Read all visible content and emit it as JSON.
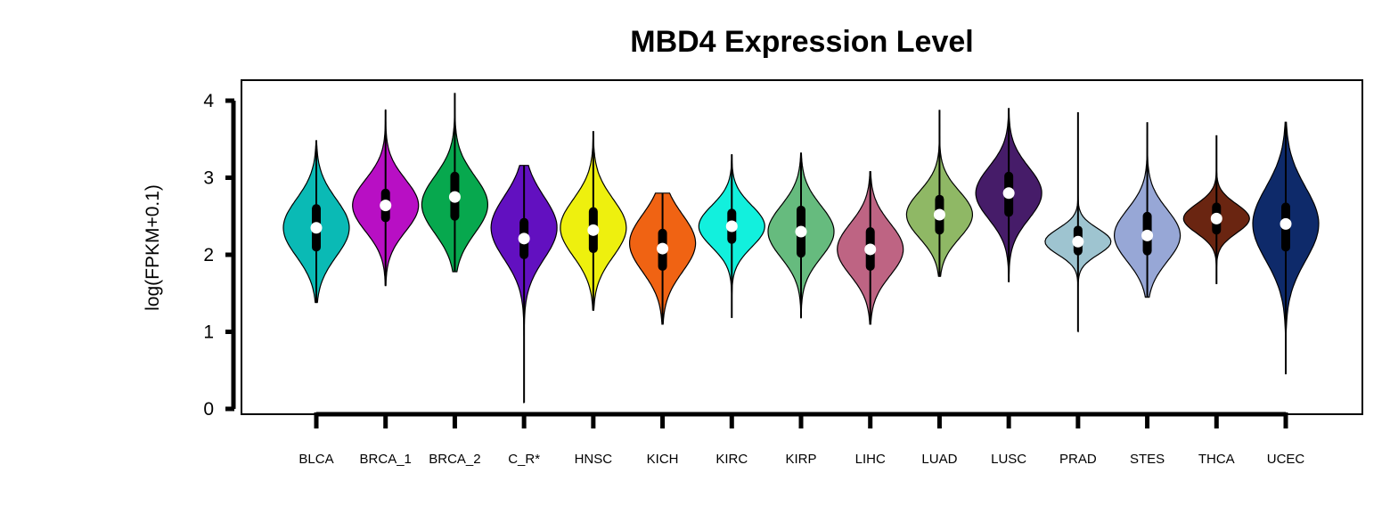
{
  "chart_data": {
    "type": "violin",
    "title": "MBD4 Expression Level",
    "ylabel": "log(FPKM+0.1)",
    "xlabel": "",
    "ylim": [
      0,
      4
    ],
    "yticks": [
      0,
      1,
      2,
      3,
      4
    ],
    "grid": false,
    "legend": "none",
    "groups": [
      {
        "name": "BLCA",
        "color": "#0ABAB5",
        "min": 1.38,
        "q1": 2.1,
        "median": 2.35,
        "q3": 2.6,
        "max": 3.48,
        "mode": 2.35,
        "spread": 0.55
      },
      {
        "name": "BRCA_1",
        "color": "#B80FC4",
        "min": 1.6,
        "q1": 2.48,
        "median": 2.64,
        "q3": 2.8,
        "max": 3.88,
        "mode": 2.64,
        "spread": 0.5
      },
      {
        "name": "BRCA_2",
        "color": "#07A84E",
        "min": 1.78,
        "q1": 2.5,
        "median": 2.75,
        "q3": 3.02,
        "max": 4.1,
        "mode": 2.65,
        "spread": 0.55
      },
      {
        "name": "C_R*",
        "color": "#6210C0",
        "min": 0.08,
        "q1": 2.0,
        "median": 2.21,
        "q3": 2.42,
        "max": 3.16,
        "mode": 2.35,
        "spread": 0.6
      },
      {
        "name": "HNSC",
        "color": "#EEF00E",
        "min": 1.28,
        "q1": 2.08,
        "median": 2.32,
        "q3": 2.56,
        "max": 3.6,
        "mode": 2.35,
        "spread": 0.55
      },
      {
        "name": "KICH",
        "color": "#F06313",
        "min": 1.1,
        "q1": 1.85,
        "median": 2.08,
        "q3": 2.28,
        "max": 2.8,
        "mode": 2.15,
        "spread": 0.55
      },
      {
        "name": "KIRC",
        "color": "#12F0DD",
        "min": 1.18,
        "q1": 2.2,
        "median": 2.37,
        "q3": 2.54,
        "max": 3.3,
        "mode": 2.37,
        "spread": 0.4
      },
      {
        "name": "KIRP",
        "color": "#66BB7E",
        "min": 1.18,
        "q1": 2.02,
        "median": 2.3,
        "q3": 2.58,
        "max": 3.32,
        "mode": 2.3,
        "spread": 0.5
      },
      {
        "name": "LIHC",
        "color": "#BE6483",
        "min": 1.1,
        "q1": 1.85,
        "median": 2.07,
        "q3": 2.3,
        "max": 3.08,
        "mode": 2.07,
        "spread": 0.5
      },
      {
        "name": "LUAD",
        "color": "#8FB865",
        "min": 1.72,
        "q1": 2.32,
        "median": 2.52,
        "q3": 2.72,
        "max": 3.88,
        "mode": 2.52,
        "spread": 0.45
      },
      {
        "name": "LUSC",
        "color": "#461C69",
        "min": 1.65,
        "q1": 2.55,
        "median": 2.8,
        "q3": 3.02,
        "max": 3.9,
        "mode": 2.8,
        "spread": 0.5
      },
      {
        "name": "PRAD",
        "color": "#9EC4D0",
        "min": 1.0,
        "q1": 2.05,
        "median": 2.17,
        "q3": 2.32,
        "max": 3.85,
        "mode": 2.17,
        "spread": 0.25
      },
      {
        "name": "STES",
        "color": "#97A7D6",
        "min": 1.45,
        "q1": 2.05,
        "median": 2.25,
        "q3": 2.5,
        "max": 3.72,
        "mode": 2.25,
        "spread": 0.5
      },
      {
        "name": "THCA",
        "color": "#6A2511",
        "min": 1.62,
        "q1": 2.32,
        "median": 2.47,
        "q3": 2.62,
        "max": 3.55,
        "mode": 2.47,
        "spread": 0.28
      },
      {
        "name": "UCEC",
        "color": "#0E2A6A",
        "min": 0.45,
        "q1": 2.1,
        "median": 2.4,
        "q3": 2.62,
        "max": 3.72,
        "mode": 2.4,
        "spread": 0.7
      }
    ]
  }
}
